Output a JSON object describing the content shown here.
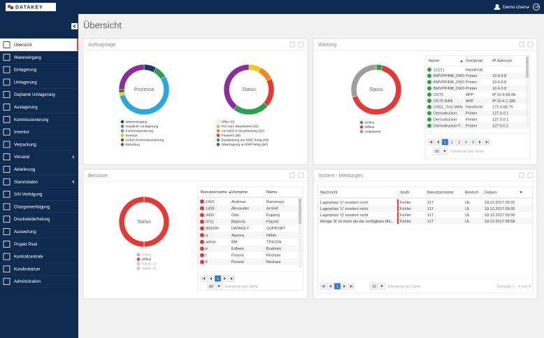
{
  "header": {
    "logo": "DATAKEY",
    "user": "Demo User"
  },
  "sidebar": {
    "items": [
      {
        "label": "Übersicht",
        "active": true
      },
      {
        "label": "Wareneingang"
      },
      {
        "label": "Einlagerung"
      },
      {
        "label": "Umlagerung"
      },
      {
        "label": "Geplante Umlagerung"
      },
      {
        "label": "Auslagerung"
      },
      {
        "label": "Kommissionierung"
      },
      {
        "label": "Inventur"
      },
      {
        "label": "Verpackung"
      },
      {
        "label": "Versand",
        "submenu": true
      },
      {
        "label": "Ablieferung"
      },
      {
        "label": "Stammdaten",
        "submenu": true
      },
      {
        "label": "S/N Verfolgung"
      },
      {
        "label": "Chargenverfolgung"
      },
      {
        "label": "Druckwiederholung"
      },
      {
        "label": "Auswertung"
      },
      {
        "label": "Projekt Pixel"
      },
      {
        "label": "Kontrollzentrale"
      },
      {
        "label": "Kundenkarton"
      },
      {
        "label": "Administration"
      }
    ]
  },
  "page": {
    "title": "Übersicht"
  },
  "auftragslage": {
    "title": "Auftragslage",
    "charts": [
      {
        "label": "Prozesse",
        "segments": [
          {
            "name": "Wareneingang",
            "color": "#1c3a6e",
            "value": 8
          },
          {
            "name": "Geplante Umlagerung",
            "color": "#2e9e4f",
            "value": 8
          },
          {
            "name": "Kommissionierung",
            "color": "#29a8e0",
            "value": 55
          },
          {
            "name": "Inventur",
            "color": "#f5c518",
            "value": 2
          },
          {
            "name": "Lieferr-Kommissionierung",
            "color": "#2d6e2d",
            "value": 2
          },
          {
            "name": "Beladung",
            "color": "#8e2c9e",
            "value": 25
          }
        ]
      },
      {
        "label": "Status",
        "segments": [
          {
            "name": "Offen (0)",
            "color": "#ffffff",
            "value": 0
          },
          {
            "name": "Frei zum Bearbeiten (16)",
            "color": "#f5c518",
            "value": 16
          },
          {
            "name": "Am MDE in Bearbeitung (20)",
            "color": "#f08a24",
            "value": 20
          },
          {
            "name": "Pausiert (38)",
            "color": "#e53935",
            "value": 38
          },
          {
            "name": "Bearbeitung am MDE fertig (48)",
            "color": "#2e9e4f",
            "value": 48
          },
          {
            "name": "Übertragung an ERP fertig (80)",
            "color": "#8e2c9e",
            "value": 80
          }
        ]
      }
    ]
  },
  "wartung": {
    "title": "Wartung",
    "chart": {
      "label": "Status",
      "segments": [
        {
          "name": "Online",
          "color": "#2e9e4f",
          "value": 4
        },
        {
          "name": "Offline",
          "color": "#e53935",
          "value": 66
        },
        {
          "name": "Unbekannt",
          "color": "#9e9e9e",
          "value": 30
        }
      ]
    },
    "table": {
      "columns": [
        "Name",
        "Geräteart",
        "IP Adresse"
      ],
      "sort": {
        "column": 0,
        "dir": "asc"
      },
      "rows": [
        [
          "12121",
          "Handheld",
          ""
        ],
        [
          "BMVPP498_OKD",
          "Printer",
          "10.4.9.8"
        ],
        [
          "BMVPP498_OKD",
          "Printer",
          "10.4.9.8"
        ],
        [
          "BMVPP498_OKD",
          "Printer",
          "10.4.9.8"
        ],
        [
          "CK75",
          "APP",
          "IP:10.4.68.98"
        ],
        [
          "CK75 RAN",
          "APP",
          "IP:10.4.1.185"
        ],
        [
          "CN51_Test MAN",
          "Handheld",
          "172.4.68.76"
        ],
        [
          "Demodrucker",
          "Printer",
          "127.0.0.1"
        ],
        [
          "Demodrucker",
          "Printer",
          "127.0.0.1"
        ],
        [
          "Demodrucker F...",
          "Printer",
          "127.0.0.1"
        ]
      ],
      "pages": [
        "1",
        "2",
        "3",
        "4",
        "5"
      ],
      "page_size": "50",
      "page_size_label": "Elemente pro Seite"
    }
  },
  "benutzer": {
    "title": "Benutzer",
    "chart": {
      "label": "Status",
      "segments": [
        {
          "name": "Online",
          "color": "#bdbdbd",
          "value": 0
        },
        {
          "name": "Offline",
          "color": "#e53935",
          "value": 100
        },
        {
          "name": "Inaktiv 10",
          "color": "#d0d0d0",
          "value": 0
        },
        {
          "name": "Inaktiv 20",
          "color": "#d0d0d0",
          "value": 0
        }
      ]
    },
    "table": {
      "columns": [
        "Benutzername",
        "Vorname",
        "Name"
      ],
      "sort": {
        "column": 0,
        "dir": "asc"
      },
      "rows": [
        [
          "1410",
          "Andreas",
          "Ransmayr"
        ],
        [
          "1428",
          "Alexander",
          "Arnhof"
        ],
        [
          "3430",
          "Otto",
          "Kopetnj"
        ],
        [
          "4711",
          "Roberto",
          "Patzelt"
        ],
        [
          "900000",
          "DATAKEY",
          "SUPPORT"
        ],
        [
          "a",
          "Aparna",
          "Nithin"
        ],
        [
          "admin",
          "BM",
          "TRICON"
        ],
        [
          "é",
          "Edhem",
          "Brakimic"
        ],
        [
          "f",
          "Florent",
          "Reshani"
        ],
        [
          "fi",
          "Florent",
          "Reshani"
        ]
      ],
      "pages": [
        "1"
      ],
      "page_size": "50",
      "page_size_label": "Elemente pro Seite"
    }
  },
  "meldungen": {
    "title": "System - Meldungen",
    "table": {
      "columns": [
        "Nachricht",
        "Stufe",
        "Benutzername",
        "Bereich",
        "Datum"
      ],
      "sort": {
        "column": 4,
        "dir": "desc"
      },
      "rows": [
        [
          "Lagerplatz 'U' existiert nicht",
          "Fehler",
          "117",
          "UL",
          "18.12.2017 09:02"
        ],
        [
          "Lagerplatz 'U' existiert nicht",
          "Fehler",
          "117",
          "UL",
          "18.12.2017 09:00"
        ],
        [
          "Lagerplatz 'Q' existiert nicht",
          "Fehler",
          "117",
          "UL",
          "18.12.2017 09:00"
        ],
        [
          "Menge '8' ist mehr als die verfügbare Me...",
          "Fehler",
          "117",
          "UL",
          "18.12.2017 08:58"
        ]
      ],
      "pages": [
        "1"
      ],
      "page_size": "10",
      "page_size_label": "Elemente pro Seite",
      "info": "Einträge 1 - 4 von 4"
    }
  }
}
